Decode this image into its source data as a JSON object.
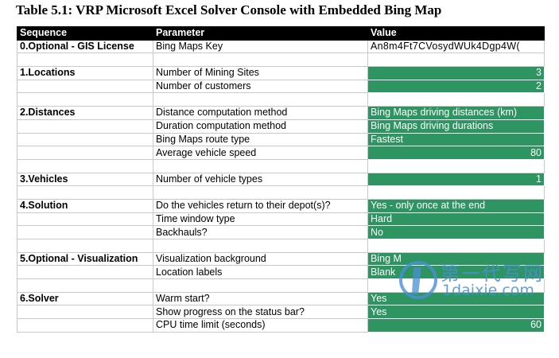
{
  "title": "Table 5.1: VRP Microsoft Excel Solver Console with Embedded Bing Map",
  "colors": {
    "header_bg": "#000000",
    "value_green": "#2e9461",
    "watermark_blue": "#4a8fd6"
  },
  "columns": {
    "sequence": "Sequence",
    "parameter": "Parameter",
    "value": "Value"
  },
  "rows": [
    {
      "kind": "data",
      "sequence": "0.Optional - GIS License",
      "parameter": "Bing Maps Key",
      "value": "An8m4Ft7CVosydWUk4Dgp4W(",
      "green": false,
      "align": "left"
    },
    {
      "kind": "blank"
    },
    {
      "kind": "data",
      "sequence": "1.Locations",
      "parameter": "Number of Mining Sites",
      "value": "3",
      "green": true,
      "align": "right"
    },
    {
      "kind": "data",
      "sequence": "",
      "parameter": "Number of customers",
      "value": "2",
      "green": true,
      "align": "right"
    },
    {
      "kind": "blank"
    },
    {
      "kind": "data",
      "sequence": "2.Distances",
      "parameter": "Distance computation method",
      "value": "Bing Maps driving distances (km)",
      "green": true,
      "align": "left"
    },
    {
      "kind": "data",
      "sequence": "",
      "parameter": "Duration computation method",
      "value": "Bing Maps driving durations",
      "green": true,
      "align": "left"
    },
    {
      "kind": "data",
      "sequence": "",
      "parameter": "Bing Maps route type",
      "value": "Fastest",
      "green": true,
      "align": "left"
    },
    {
      "kind": "data",
      "sequence": "",
      "parameter": "Average vehicle speed",
      "value": "80",
      "green": true,
      "align": "right"
    },
    {
      "kind": "blank"
    },
    {
      "kind": "data",
      "sequence": "3.Vehicles",
      "parameter": "Number of vehicle types",
      "value": "1",
      "green": true,
      "align": "right"
    },
    {
      "kind": "blank"
    },
    {
      "kind": "data",
      "sequence": "4.Solution",
      "parameter": "Do the vehicles return to their depot(s)?",
      "value": "Yes - only once at the end",
      "green": true,
      "align": "left"
    },
    {
      "kind": "data",
      "sequence": "",
      "parameter": "Time window type",
      "value": "Hard",
      "green": true,
      "align": "left"
    },
    {
      "kind": "data",
      "sequence": "",
      "parameter": "Backhauls?",
      "value": "No",
      "green": true,
      "align": "left"
    },
    {
      "kind": "blank"
    },
    {
      "kind": "data",
      "sequence": "5.Optional - Visualization",
      "parameter": "Visualization background",
      "value": "Bing M",
      "green": true,
      "align": "left"
    },
    {
      "kind": "data",
      "sequence": "",
      "parameter": "Location labels",
      "value": "Blank",
      "green": true,
      "align": "left"
    },
    {
      "kind": "blank"
    },
    {
      "kind": "data",
      "sequence": "6.Solver",
      "parameter": "Warm start?",
      "value": "Yes",
      "green": true,
      "align": "left"
    },
    {
      "kind": "data",
      "sequence": "",
      "parameter": "Show progress on the status bar?",
      "value": "Yes",
      "green": true,
      "align": "left"
    },
    {
      "kind": "data",
      "sequence": "",
      "parameter": "CPU time limit (seconds)",
      "value": "60",
      "green": true,
      "align": "right"
    }
  ],
  "watermark": {
    "chinese": "第一代写网",
    "url": "1daixie.com"
  }
}
